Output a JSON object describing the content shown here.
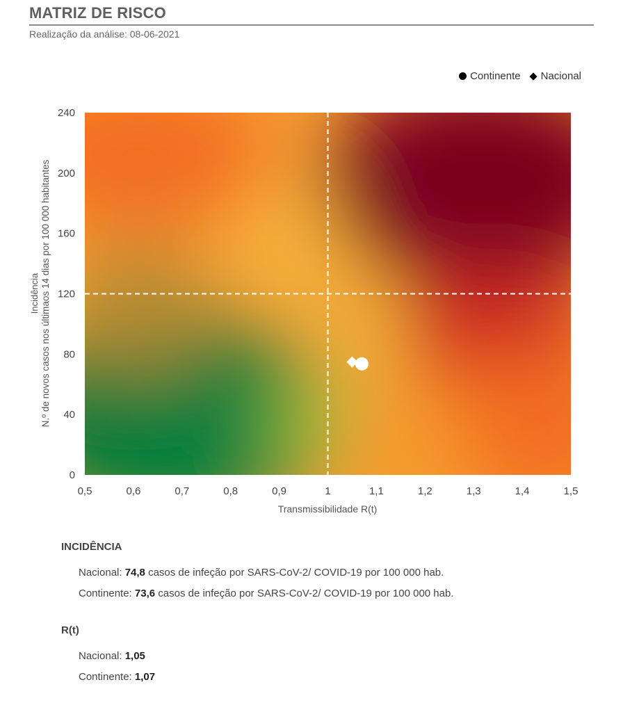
{
  "header": {
    "title": "MATRIZ DE RISCO",
    "subtitle": "Realização da análise: 08-06-2021"
  },
  "legend": {
    "continente": "Continente",
    "nacional": "Nacional"
  },
  "chart_data": {
    "type": "scatter",
    "title": "",
    "xlabel": "Transmissibilidade R(t)",
    "ylabel_line1": "Incidência",
    "ylabel_line2": "N.º de novos casos nos últimaos 14 dias por 100 000 habitantes",
    "xlim": [
      0.5,
      1.5
    ],
    "ylim": [
      0,
      240
    ],
    "x_ticks": [
      "0,5",
      "0,6",
      "0,7",
      "0,8",
      "0,9",
      "1",
      "1,1",
      "1,2",
      "1,3",
      "1,4",
      "1,5"
    ],
    "y_ticks": [
      "0",
      "40",
      "80",
      "120",
      "160",
      "200",
      "240"
    ],
    "thresholds": {
      "x": 1.0,
      "y": 120
    },
    "background": "risk-gradient green-yellow-orange-red",
    "colors": {
      "green": "#007a3a",
      "yellow": "#f7b731",
      "orange": "#f36d21",
      "red": "#7d0022",
      "marker": "#ffffff"
    },
    "series": [
      {
        "name": "Continente",
        "marker": "circle",
        "x": 1.07,
        "y": 73.6
      },
      {
        "name": "Nacional",
        "marker": "diamond",
        "x": 1.05,
        "y": 74.8
      }
    ]
  },
  "incidencia": {
    "heading": "INCIDÊNCIA",
    "nacional_label": "Nacional: ",
    "nacional_value": "74,8",
    "nacional_text": " casos de infeção por SARS-CoV-2/ COVID-19 por 100 000 hab.",
    "continente_label": "Continente: ",
    "continente_value": "73,6",
    "continente_text": " casos de infeção por SARS-CoV-2/ COVID-19 por 100 000 hab."
  },
  "rt": {
    "heading": "R(t)",
    "nacional_label": "Nacional: ",
    "nacional_value": "1,05",
    "continente_label": "Continente: ",
    "continente_value": "1,07"
  }
}
